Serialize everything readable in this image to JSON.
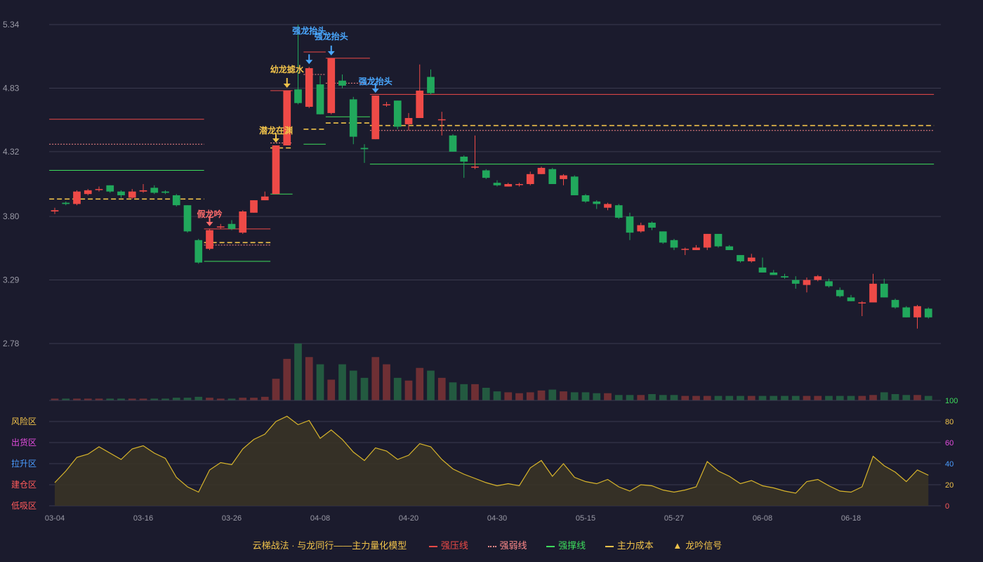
{
  "colors": {
    "background": "#1b1b2d",
    "up": "#ee4a47",
    "down": "#21a85c",
    "pressure": "#ee4a47",
    "weak": "#ff8a8a",
    "support": "#3ddc5c",
    "cost": "#f0c24a",
    "grid": "#3a3a4e",
    "axis_text": "#9a9aa6",
    "signal_blue": "#4aa8ff",
    "signal_gold": "#f0c24a",
    "signal_red": "#ff6b6b"
  },
  "legend": {
    "title": "云梯战法 · 与龙同行——主力量化模型",
    "items": [
      {
        "label": "强压线",
        "color": "#ee4a47",
        "style": "solid"
      },
      {
        "label": "强弱线",
        "color": "#ff8a8a",
        "style": "dotted"
      },
      {
        "label": "强撑线",
        "color": "#3ddc5c",
        "style": "solid"
      },
      {
        "label": "主力成本",
        "color": "#f0c24a",
        "style": "dashed"
      },
      {
        "label": "龙吟信号",
        "color": "#f0c24a",
        "style": "triangle"
      }
    ]
  },
  "chart_data": {
    "type": "candlestick",
    "price_axis": {
      "ticks": [
        "5.34",
        "4.83",
        "4.32",
        "3.80",
        "3.29",
        "2.78"
      ],
      "range": [
        2.78,
        5.34
      ]
    },
    "x_tick_labels": [
      {
        "index": 0,
        "label": "03-04"
      },
      {
        "index": 8,
        "label": "03-16"
      },
      {
        "index": 16,
        "label": "03-26"
      },
      {
        "index": 24,
        "label": "04-08"
      },
      {
        "index": 32,
        "label": "04-20"
      },
      {
        "index": 40,
        "label": "04-30"
      },
      {
        "index": 48,
        "label": "05-15"
      },
      {
        "index": 56,
        "label": "05-27"
      },
      {
        "index": 64,
        "label": "06-08"
      },
      {
        "index": 72,
        "label": "06-18"
      }
    ],
    "candles": [
      [
        3.84,
        3.85,
        3.82,
        3.87
      ],
      [
        3.91,
        3.9,
        3.89,
        3.92
      ],
      [
        3.9,
        4.0,
        3.89,
        4.01
      ],
      [
        3.98,
        4.01,
        3.97,
        4.02
      ],
      [
        4.02,
        4.02,
        4.0,
        4.04
      ],
      [
        4.05,
        4.0,
        3.99,
        4.05
      ],
      [
        4.0,
        3.97,
        3.95,
        4.01
      ],
      [
        3.95,
        4.0,
        3.94,
        4.02
      ],
      [
        4.0,
        4.01,
        3.99,
        4.06
      ],
      [
        4.03,
        3.99,
        3.98,
        4.05
      ],
      [
        4.0,
        3.99,
        3.98,
        4.01
      ],
      [
        3.97,
        3.89,
        3.88,
        3.98
      ],
      [
        3.89,
        3.68,
        3.67,
        3.89
      ],
      [
        3.61,
        3.43,
        3.42,
        3.62
      ],
      [
        3.54,
        3.69,
        3.53,
        3.7
      ],
      [
        3.72,
        3.72,
        3.7,
        3.74
      ],
      [
        3.74,
        3.7,
        3.69,
        3.77
      ],
      [
        3.67,
        3.84,
        3.66,
        3.85
      ],
      [
        3.83,
        3.93,
        3.83,
        3.93
      ],
      [
        3.93,
        3.96,
        3.93,
        4.0
      ],
      [
        3.98,
        4.37,
        3.98,
        4.37
      ],
      [
        4.37,
        4.81,
        4.37,
        4.81
      ],
      [
        4.82,
        4.71,
        4.7,
        5.34
      ],
      [
        4.68,
        4.99,
        4.67,
        5.0
      ],
      [
        4.86,
        4.62,
        4.62,
        4.93
      ],
      [
        4.63,
        5.07,
        4.62,
        5.07
      ],
      [
        4.89,
        4.85,
        4.83,
        4.94
      ],
      [
        4.74,
        4.44,
        4.38,
        4.76
      ],
      [
        4.35,
        4.34,
        4.23,
        4.38
      ],
      [
        4.42,
        4.77,
        4.42,
        4.77
      ],
      [
        4.7,
        4.7,
        4.68,
        4.72
      ],
      [
        4.73,
        4.52,
        4.5,
        4.73
      ],
      [
        4.54,
        4.59,
        4.49,
        4.63
      ],
      [
        4.59,
        4.81,
        4.59,
        5.02
      ],
      [
        4.92,
        4.79,
        4.78,
        4.98
      ],
      [
        4.58,
        4.58,
        4.45,
        4.64
      ],
      [
        4.45,
        4.32,
        4.32,
        4.46
      ],
      [
        4.28,
        4.24,
        4.11,
        4.29
      ],
      [
        4.2,
        4.2,
        4.18,
        4.45
      ],
      [
        4.17,
        4.11,
        4.1,
        4.18
      ],
      [
        4.07,
        4.05,
        4.04,
        4.09
      ],
      [
        4.04,
        4.06,
        4.04,
        4.07
      ],
      [
        4.06,
        4.06,
        4.04,
        4.07
      ],
      [
        4.06,
        4.14,
        4.05,
        4.16
      ],
      [
        4.14,
        4.19,
        4.14,
        4.2
      ],
      [
        4.18,
        4.06,
        4.06,
        4.19
      ],
      [
        4.1,
        4.13,
        4.05,
        4.14
      ],
      [
        4.12,
        3.97,
        3.97,
        4.13
      ],
      [
        3.97,
        3.92,
        3.91,
        3.98
      ],
      [
        3.92,
        3.9,
        3.86,
        3.93
      ],
      [
        3.87,
        3.9,
        3.85,
        3.91
      ],
      [
        3.89,
        3.79,
        3.78,
        3.9
      ],
      [
        3.8,
        3.67,
        3.61,
        3.83
      ],
      [
        3.68,
        3.73,
        3.67,
        3.75
      ],
      [
        3.75,
        3.71,
        3.69,
        3.76
      ],
      [
        3.68,
        3.59,
        3.58,
        3.68
      ],
      [
        3.61,
        3.55,
        3.53,
        3.62
      ],
      [
        3.54,
        3.54,
        3.49,
        3.55
      ],
      [
        3.53,
        3.55,
        3.53,
        3.57
      ],
      [
        3.55,
        3.66,
        3.53,
        3.66
      ],
      [
        3.66,
        3.56,
        3.55,
        3.66
      ],
      [
        3.56,
        3.53,
        3.53,
        3.57
      ],
      [
        3.49,
        3.44,
        3.43,
        3.49
      ],
      [
        3.44,
        3.47,
        3.43,
        3.5
      ],
      [
        3.39,
        3.35,
        3.35,
        3.47
      ],
      [
        3.35,
        3.33,
        3.33,
        3.37
      ],
      [
        3.32,
        3.31,
        3.3,
        3.34
      ],
      [
        3.29,
        3.26,
        3.22,
        3.32
      ],
      [
        3.25,
        3.29,
        3.19,
        3.31
      ],
      [
        3.29,
        3.32,
        3.28,
        3.33
      ],
      [
        3.28,
        3.24,
        3.23,
        3.3
      ],
      [
        3.21,
        3.16,
        3.15,
        3.23
      ],
      [
        3.15,
        3.12,
        3.12,
        3.17
      ],
      [
        3.11,
        3.11,
        3.0,
        3.12
      ],
      [
        3.11,
        3.26,
        3.11,
        3.34
      ],
      [
        3.26,
        3.15,
        3.15,
        3.3
      ],
      [
        3.13,
        3.07,
        3.06,
        3.14
      ],
      [
        3.07,
        2.99,
        2.99,
        3.08
      ],
      [
        2.99,
        3.08,
        2.9,
        3.09
      ],
      [
        3.06,
        2.99,
        2.98,
        3.07
      ]
    ],
    "volume": [
      2,
      2,
      2,
      2,
      2,
      2,
      2,
      2,
      2,
      2,
      2,
      3,
      3,
      4,
      3,
      2,
      2,
      3,
      3,
      4,
      24,
      46,
      63,
      48,
      40,
      23,
      40,
      33,
      25,
      48,
      40,
      25,
      22,
      36,
      33,
      25,
      20,
      18,
      18,
      14,
      10,
      9,
      8,
      9,
      11,
      12,
      10,
      9,
      9,
      8,
      8,
      6,
      6,
      6,
      7,
      6,
      6,
      5,
      5,
      5,
      5,
      5,
      5,
      5,
      5,
      5,
      5,
      5,
      5,
      5,
      5,
      5,
      5,
      5,
      6,
      9,
      7,
      6,
      6,
      5
    ],
    "indicator": {
      "levels": [
        {
          "label": "风险区",
          "value": 80,
          "color": "#f0c24a"
        },
        {
          "label": "出货区",
          "value": 60,
          "color": "#e34cde"
        },
        {
          "label": "拉升区",
          "value": 40,
          "color": "#4a9cff"
        },
        {
          "label": "建仓区",
          "value": 20,
          "color": "#ff5a5a"
        },
        {
          "label": "低吸区",
          "value": 0,
          "color": "#ff5a5a"
        }
      ],
      "right_ticks": [
        {
          "label": "100",
          "color": "#3ddc5c"
        },
        {
          "label": "80",
          "color": "#f0c24a"
        },
        {
          "label": "60",
          "color": "#e34cde"
        },
        {
          "label": "40",
          "color": "#4a9cff"
        },
        {
          "label": "20",
          "color": "#f0c24a"
        },
        {
          "label": "0",
          "color": "#ff5a5a"
        }
      ],
      "values": [
        22,
        33,
        46,
        49,
        56,
        50,
        44,
        54,
        57,
        50,
        45,
        27,
        18,
        13,
        34,
        41,
        39,
        54,
        63,
        68,
        80,
        85,
        77,
        81,
        64,
        72,
        63,
        51,
        43,
        55,
        52,
        44,
        48,
        59,
        56,
        44,
        35,
        30,
        26,
        22,
        19,
        21,
        19,
        36,
        43,
        28,
        40,
        27,
        23,
        21,
        25,
        18,
        14,
        20,
        19,
        15,
        13,
        15,
        18,
        42,
        33,
        28,
        21,
        24,
        19,
        17,
        14,
        12,
        23,
        25,
        19,
        14,
        13,
        18,
        47,
        38,
        32,
        23,
        34,
        29
      ]
    },
    "levels": [
      {
        "type": "pressure",
        "from": 0,
        "to": 13,
        "value": 4.58
      },
      {
        "type": "weak",
        "from": 0,
        "to": 13,
        "value": 4.38
      },
      {
        "type": "support",
        "from": 0,
        "to": 13,
        "value": 4.17
      },
      {
        "type": "cost",
        "from": 0,
        "to": 13,
        "value": 3.94
      },
      {
        "type": "pressure",
        "from": 14,
        "to": 19,
        "value": 3.7
      },
      {
        "type": "weak",
        "from": 14,
        "to": 19,
        "value": 3.57
      },
      {
        "type": "support",
        "from": 14,
        "to": 19,
        "value": 3.44
      },
      {
        "type": "cost",
        "from": 14,
        "to": 19,
        "value": 3.59
      },
      {
        "type": "pressure",
        "from": 20,
        "to": 21,
        "value": 4.81
      },
      {
        "type": "weak",
        "from": 20,
        "to": 21,
        "value": 4.39
      },
      {
        "type": "support",
        "from": 20,
        "to": 21,
        "value": 3.98
      },
      {
        "type": "cost",
        "from": 20,
        "to": 21,
        "value": 4.35
      },
      {
        "type": "pressure",
        "from": 23,
        "to": 24,
        "value": 5.12
      },
      {
        "type": "weak",
        "from": 23,
        "to": 24,
        "value": 4.94
      },
      {
        "type": "support",
        "from": 23,
        "to": 24,
        "value": 4.38
      },
      {
        "type": "cost",
        "from": 23,
        "to": 24,
        "value": 4.5
      },
      {
        "type": "pressure",
        "from": 25,
        "to": 28,
        "value": 5.07
      },
      {
        "type": "weak",
        "from": 25,
        "to": 28,
        "value": 4.87
      },
      {
        "type": "support",
        "from": 25,
        "to": 28,
        "value": 4.6
      },
      {
        "type": "cost",
        "from": 25,
        "to": 28,
        "value": 4.55
      },
      {
        "type": "pressure",
        "from": 29,
        "to": 79,
        "value": 4.78
      },
      {
        "type": "weak",
        "from": 29,
        "to": 79,
        "value": 4.49
      },
      {
        "type": "support",
        "from": 29,
        "to": 79,
        "value": 4.22
      },
      {
        "type": "cost",
        "from": 29,
        "to": 79,
        "value": 4.53
      }
    ],
    "signals": [
      {
        "index": 14,
        "label": "假龙吟",
        "color": "#ff6b6b"
      },
      {
        "index": 20,
        "label": "潜龙在渊",
        "color": "#f0c24a"
      },
      {
        "index": 21,
        "label": "幼龙摅水",
        "color": "#f0c24a"
      },
      {
        "index": 23,
        "label": "强龙抬头",
        "color": "#4aa8ff"
      },
      {
        "index": 25,
        "label": "强龙抬头",
        "color": "#4aa8ff"
      },
      {
        "index": 29,
        "label": "强龙抬头",
        "color": "#4aa8ff"
      }
    ]
  }
}
